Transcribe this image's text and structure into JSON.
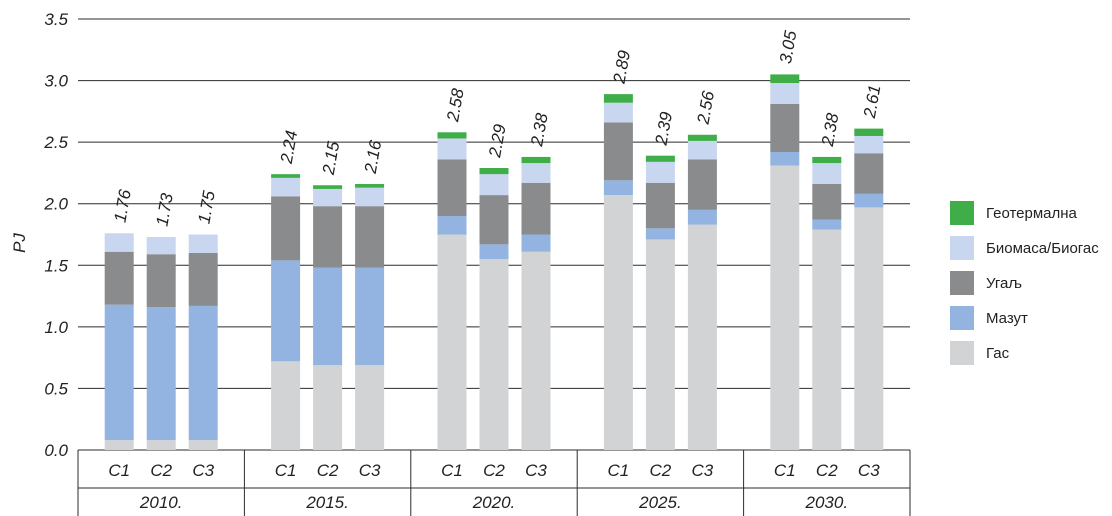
{
  "chart_data": {
    "type": "bar",
    "stacked": true,
    "ylabel": "PJ",
    "ylim": [
      0,
      3.5
    ],
    "yticks": [
      "0.0",
      "0.5",
      "1.0",
      "1.5",
      "2.0",
      "2.5",
      "3.0",
      "3.5"
    ],
    "grid": true,
    "legend_position": "right",
    "groups": [
      "2010.",
      "2015.",
      "2020.",
      "2025.",
      "2030."
    ],
    "scenarios": [
      "C1",
      "C2",
      "C3"
    ],
    "series": [
      {
        "name": "Гас",
        "color": "#d2d3d5",
        "values": [
          [
            0.08,
            0.08,
            0.08
          ],
          [
            0.72,
            0.69,
            0.69
          ],
          [
            1.75,
            1.55,
            1.61
          ],
          [
            2.07,
            1.71,
            1.83
          ],
          [
            2.31,
            1.79,
            1.97
          ]
        ]
      },
      {
        "name": "Мазут",
        "color": "#93b3e0",
        "values": [
          [
            1.1,
            1.08,
            1.09
          ],
          [
            0.82,
            0.79,
            0.79
          ],
          [
            0.15,
            0.12,
            0.14
          ],
          [
            0.12,
            0.09,
            0.12
          ],
          [
            0.11,
            0.08,
            0.11
          ]
        ]
      },
      {
        "name": "Угаљ",
        "color": "#8a8b8d",
        "values": [
          [
            0.43,
            0.43,
            0.43
          ],
          [
            0.52,
            0.5,
            0.5
          ],
          [
            0.46,
            0.4,
            0.42
          ],
          [
            0.47,
            0.37,
            0.41
          ],
          [
            0.39,
            0.29,
            0.33
          ]
        ]
      },
      {
        "name": "Биомаса/Биогас",
        "color": "#c8d6f0",
        "values": [
          [
            0.15,
            0.14,
            0.15
          ],
          [
            0.15,
            0.14,
            0.15
          ],
          [
            0.17,
            0.17,
            0.16
          ],
          [
            0.16,
            0.17,
            0.15
          ],
          [
            0.17,
            0.17,
            0.14
          ]
        ]
      },
      {
        "name": "Геотермална",
        "color": "#3fae49",
        "values": [
          [
            0.0,
            0.0,
            0.0
          ],
          [
            0.03,
            0.03,
            0.03
          ],
          [
            0.05,
            0.05,
            0.05
          ],
          [
            0.07,
            0.05,
            0.05
          ],
          [
            0.07,
            0.05,
            0.06
          ]
        ]
      }
    ],
    "totals": [
      [
        "1.76",
        "1.73",
        "1.75"
      ],
      [
        "2.24",
        "2.15",
        "2.16"
      ],
      [
        "2.58",
        "2.29",
        "2.38"
      ],
      [
        "2.89",
        "2.39",
        "2.56"
      ],
      [
        "3.05",
        "2.38",
        "2.61"
      ]
    ],
    "legend_order": [
      4,
      3,
      2,
      1,
      0
    ]
  }
}
